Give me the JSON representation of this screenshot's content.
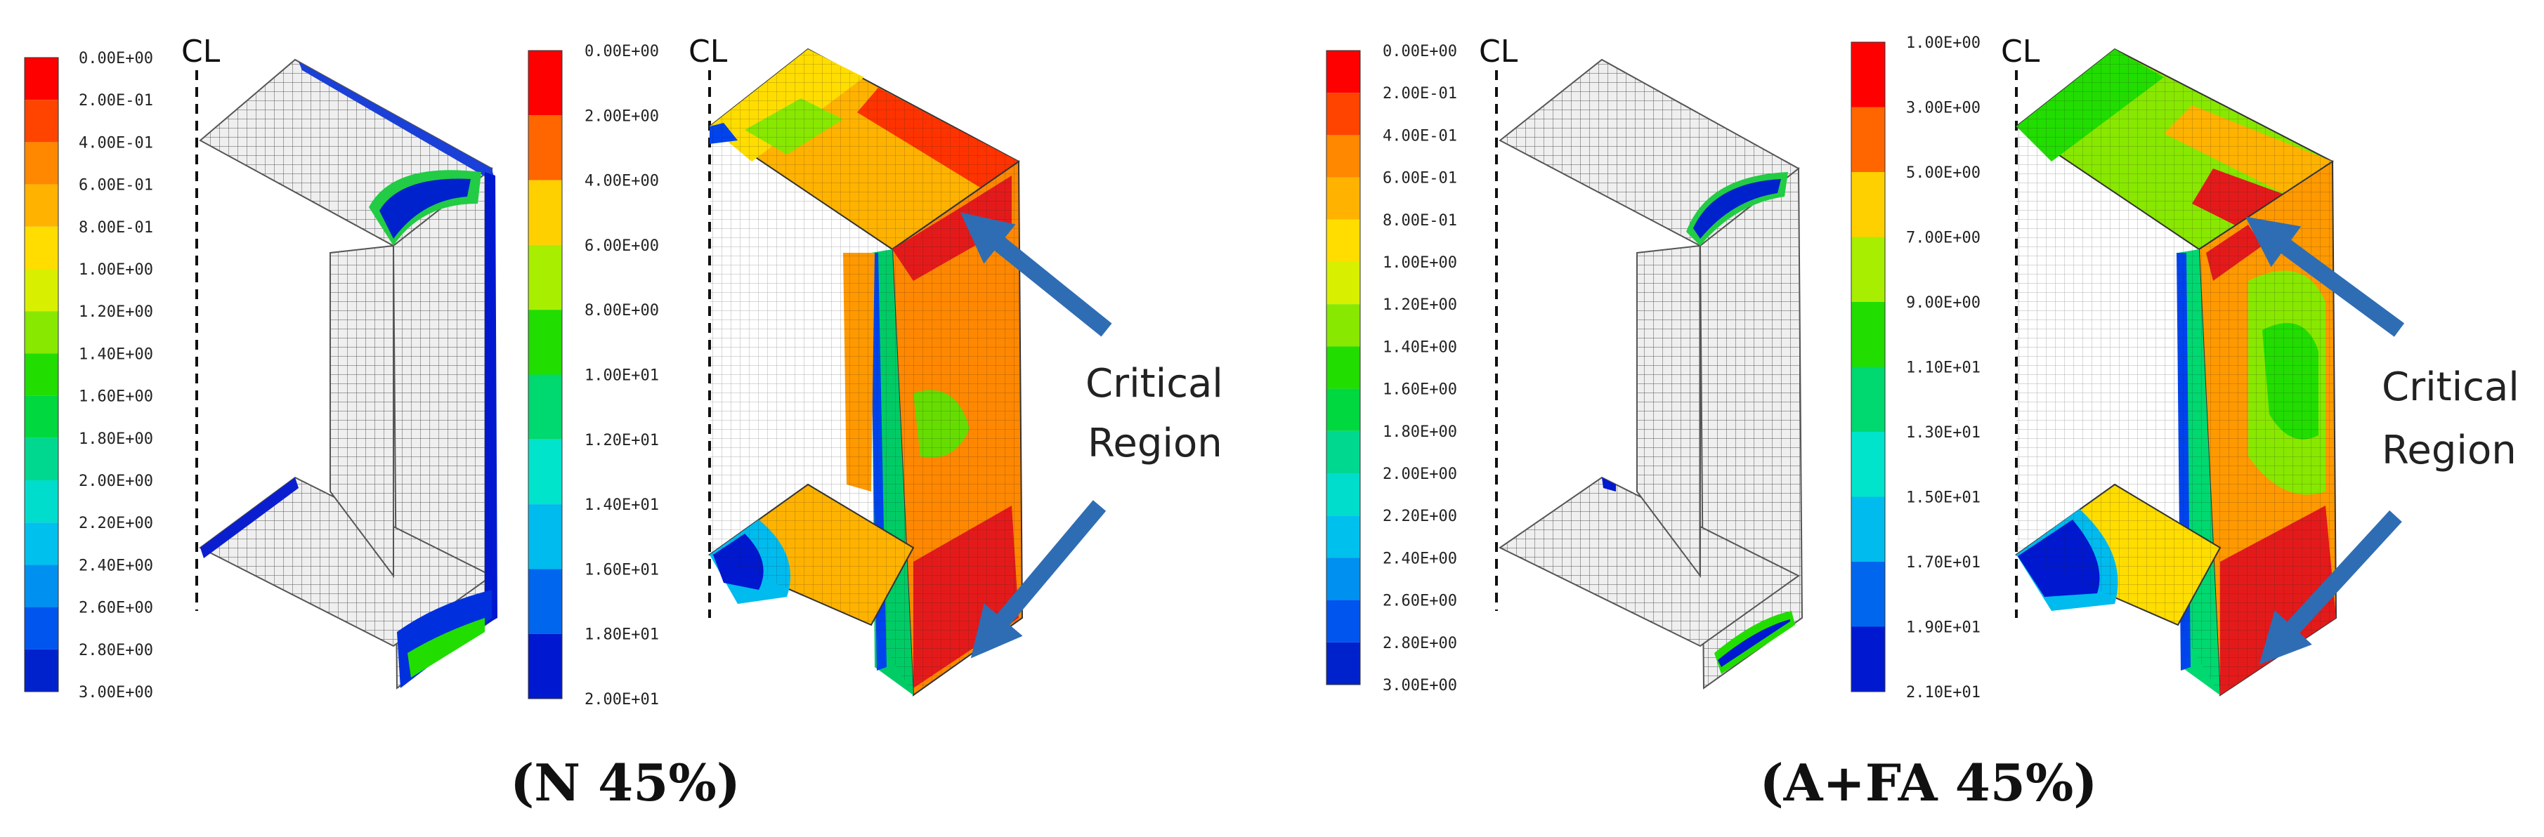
{
  "panels": [
    {
      "id": "p1",
      "left_scale": {
        "labels": [
          "0.00E+00",
          "2.00E-01",
          "4.00E-01",
          "6.00E-01",
          "8.00E-01",
          "1.00E+00",
          "1.20E+00",
          "1.40E+00",
          "1.60E+00",
          "1.80E+00",
          "2.00E+00",
          "2.20E+00",
          "2.40E+00",
          "2.60E+00",
          "2.80E+00",
          "3.00E+00"
        ]
      },
      "right_scale": {
        "labels": [
          "0.00E+00",
          "2.00E+00",
          "4.00E+00",
          "6.00E+00",
          "8.00E+00",
          "1.00E+01",
          "1.20E+01",
          "1.40E+01",
          "1.60E+01",
          "1.80E+01",
          "2.00E+01"
        ]
      },
      "cl_label": "CL",
      "annotation": [
        "Critical",
        "Region"
      ],
      "caption": "(N 45%)"
    },
    {
      "id": "p2",
      "left_scale": {
        "labels": [
          "0.00E+00",
          "2.00E-01",
          "4.00E-01",
          "6.00E-01",
          "8.00E-01",
          "1.00E+00",
          "1.20E+00",
          "1.40E+00",
          "1.60E+00",
          "1.80E+00",
          "2.00E+00",
          "2.20E+00",
          "2.40E+00",
          "2.60E+00",
          "2.80E+00",
          "3.00E+00"
        ]
      },
      "right_scale": {
        "labels": [
          "1.00E+00",
          "3.00E+00",
          "5.00E+00",
          "7.00E+00",
          "9.00E+00",
          "1.10E+01",
          "1.30E+01",
          "1.50E+01",
          "1.70E+01",
          "1.90E+01",
          "2.10E+01"
        ]
      },
      "cl_label": "CL",
      "annotation": [
        "Critical",
        "Region"
      ],
      "caption": "(A+FA 45%)"
    }
  ],
  "colors": {
    "scale15": [
      "#ff0000",
      "#ff4400",
      "#ff8800",
      "#ffb300",
      "#ffdd00",
      "#d8f000",
      "#88e800",
      "#22dd00",
      "#00d840",
      "#00d890",
      "#00ddcc",
      "#00c0ee",
      "#0090f0",
      "#0055ee",
      "#0022cc"
    ],
    "scale10": [
      "#ff0000",
      "#ff6600",
      "#ffd000",
      "#a8ee00",
      "#22dd00",
      "#00d870",
      "#00e4cc",
      "#00bbee",
      "#0066ee",
      "#0018d0"
    ],
    "arrow": "#2e6db4",
    "mesh_gray": "#eeeeee",
    "contour_red": "#e41a1a"
  }
}
